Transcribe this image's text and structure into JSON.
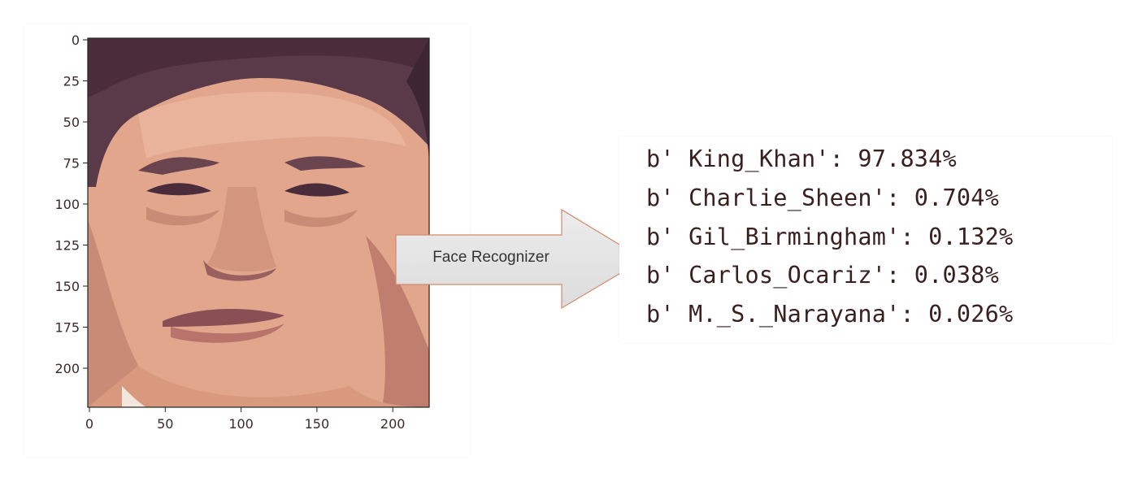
{
  "plot": {
    "y_ticks": [
      "0",
      "25",
      "50",
      "75",
      "100",
      "125",
      "150",
      "175",
      "200"
    ],
    "x_ticks": [
      "0",
      "50",
      "100",
      "150",
      "200"
    ],
    "image_description": "face-photo"
  },
  "arrow": {
    "label": "Face Recognizer"
  },
  "output": {
    "lines": [
      "b' King_Khan': 97.834%",
      "b' Charlie_Sheen': 0.704%",
      "b' Gil_Birmingham': 0.132%",
      "b' Carlos_Ocariz': 0.038%",
      "b' M._S._Narayana': 0.026%"
    ]
  },
  "colors": {
    "skin": "#e4a88f",
    "hair": "#5a3a48",
    "text": "#3a1f1f",
    "arrow_fill": "#e3e3e3",
    "arrow_stroke": "#d07a5a"
  }
}
